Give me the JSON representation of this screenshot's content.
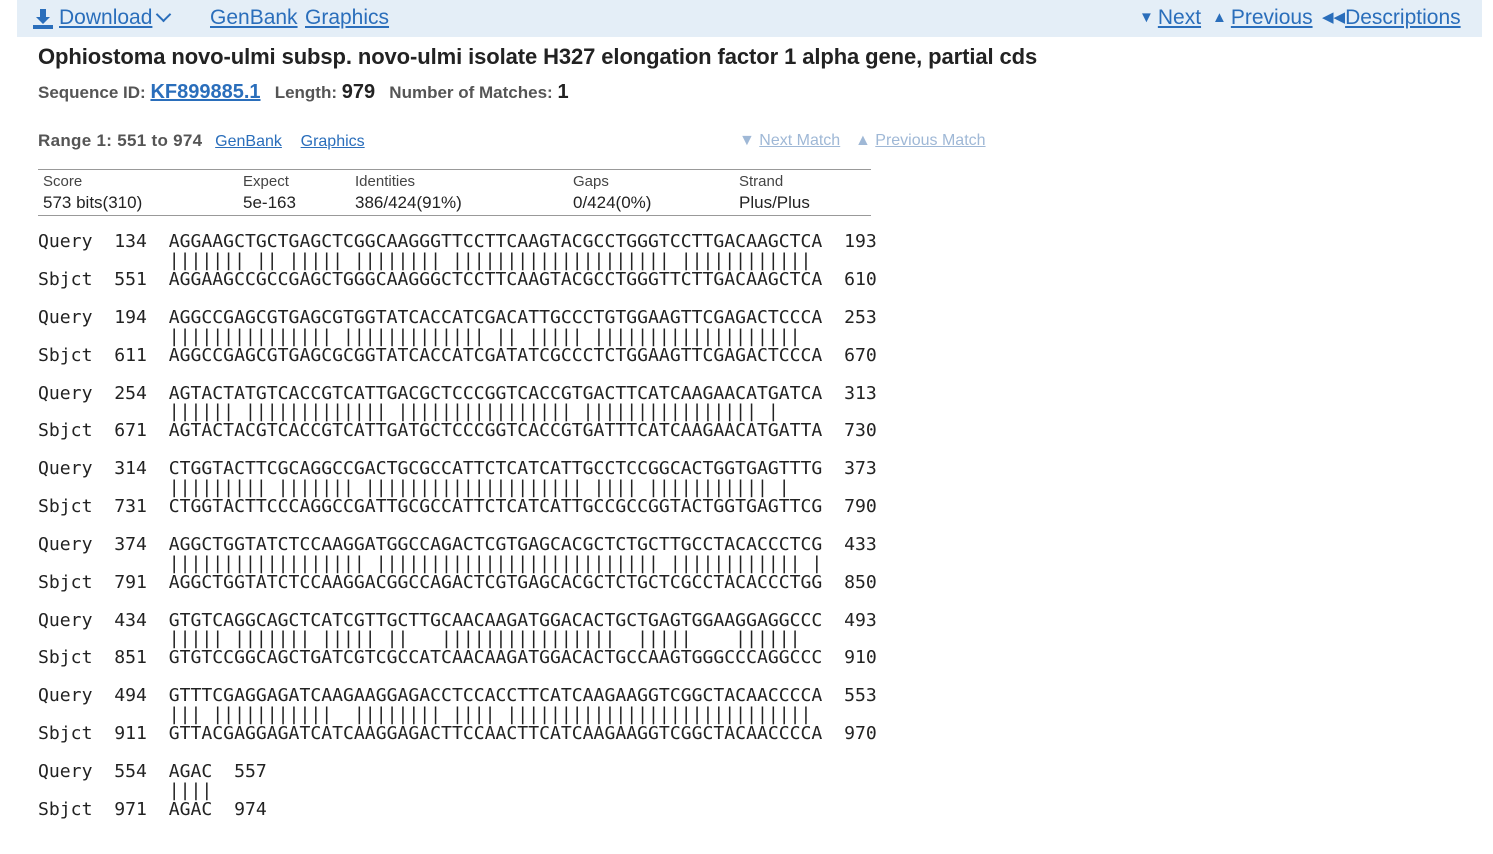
{
  "toolbar": {
    "download_label": "Download",
    "genbank_label": "GenBank",
    "graphics_label": "Graphics",
    "next_label": "Next",
    "previous_label": "Previous",
    "descriptions_label": "Descriptions"
  },
  "record": {
    "title": "Ophiostoma novo-ulmi subsp. novo-ulmi isolate H327 elongation factor 1 alpha gene, partial cds",
    "sequence_id_label": "Sequence ID:",
    "sequence_id": "KF899885.1",
    "length_label": "Length:",
    "length": "979",
    "matches_label": "Number of Matches:",
    "matches": "1"
  },
  "range": {
    "label": "Range 1: 551 to 974",
    "genbank_label": "GenBank",
    "graphics_label": "Graphics",
    "next_match_label": "Next Match",
    "previous_match_label": "Previous Match"
  },
  "stats": {
    "score_label": "Score",
    "score": "573 bits(310)",
    "expect_label": "Expect",
    "expect": "5e-163",
    "identities_label": "Identities",
    "identities": "386/424(91%)",
    "gaps_label": "Gaps",
    "gaps": "0/424(0%)",
    "strand_label": "Strand",
    "strand": "Plus/Plus"
  },
  "alignment": [
    {
      "q": "Query  134  AGGAAGCTGCTGAGCTCGGCAAGGGTTCCTTCAAGTACGCCTGGGTCCTTGACAAGCTCA  193",
      "m": "            ||||||| || ||||| |||||||| |||||||||||||||||||| ||||||||||||",
      "s": "Sbjct  551  AGGAAGCCGCCGAGCTGGGCAAGGGCTCCTTCAAGTACGCCTGGGTTCTTGACAAGCTCA  610"
    },
    {
      "q": "Query  194  AGGCCGAGCGTGAGCGTGGTATCACCATCGACATTGCCCTGTGGAAGTTCGAGACTCCCA  253",
      "m": "            ||||||||||||||| ||||||||||||| || ||||| |||||||||||||||||||",
      "s": "Sbjct  611  AGGCCGAGCGTGAGCGCGGTATCACCATCGATATCGCCCTCTGGAAGTTCGAGACTCCCA  670"
    },
    {
      "q": "Query  254  AGTACTATGTCACCGTCATTGACGCTCCCGGTCACCGTGACTTCATCAAGAACATGATCA  313",
      "m": "            |||||| ||||||||||||| |||||||||||||||| |||||||||||||||| |",
      "s": "Sbjct  671  AGTACTACGTCACCGTCATTGATGCTCCCGGTCACCGTGATTTCATCAAGAACATGATTA  730"
    },
    {
      "q": "Query  314  CTGGTACTTCGCAGGCCGACTGCGCCATTCTCATCATTGCCTCCGGCACTGGTGAGTTTG  373",
      "m": "            ||||||||| ||||||| |||||||||||||||||||| |||| ||||||||||| |",
      "s": "Sbjct  731  CTGGTACTTCCCAGGCCGATTGCGCCATTCTCATCATTGCCGCCGGTACTGGTGAGTTCG  790"
    },
    {
      "q": "Query  374  AGGCTGGTATCTCCAAGGATGGCCAGACTCGTGAGCACGCTCTGCTTGCCTACACCCTCG  433",
      "m": "            |||||||||||||||||| |||||||||||||||||||||||||| |||||||||||| |",
      "s": "Sbjct  791  AGGCTGGTATCTCCAAGGACGGCCAGACTCGTGAGCACGCTCTGCTCGCCTACACCCTGG  850"
    },
    {
      "q": "Query  434  GTGTCAGGCAGCTCATCGTTGCTTGCAACAAGATGGACACTGCTGAGTGGAAGGAGGCCC  493",
      "m": "            ||||| ||||||| ||||| ||   ||||||||||||||||  |||||    ||||||",
      "s": "Sbjct  851  GTGTCCGGCAGCTGATCGTCGCCATCAACAAGATGGACACTGCCAAGTGGGCCCAGGCCC  910"
    },
    {
      "q": "Query  494  GTTTCGAGGAGATCAAGAAGGAGACCTCCACCTTCATCAAGAAGGTCGGCTACAACCCCA  553",
      "m": "            ||| |||||||||||  |||||||| |||| ||||||||||||||||||||||||||||",
      "s": "Sbjct  911  GTTACGAGGAGATCATCAAGGAGACTTCCAACTTCATCAAGAAGGTCGGCTACAACCCCA  970"
    },
    {
      "q": "Query  554  AGAC  557",
      "m": "            ||||",
      "s": "Sbjct  971  AGAC  974"
    }
  ]
}
